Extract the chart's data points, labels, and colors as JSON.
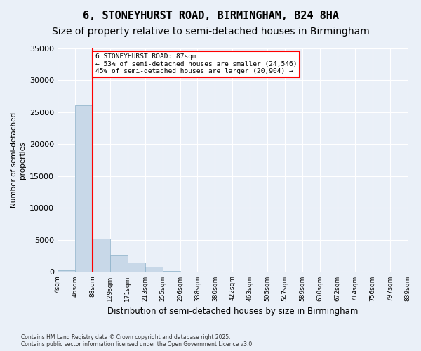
{
  "title1": "6, STONEYHURST ROAD, BIRMINGHAM, B24 8HA",
  "title2": "Size of property relative to semi-detached houses in Birmingham",
  "xlabel": "Distribution of semi-detached houses by size in Birmingham",
  "ylabel": "Number of semi-detached\nproperties",
  "footnote": "Contains HM Land Registry data © Crown copyright and database right 2025.\nContains public sector information licensed under the Open Government Licence v3.0.",
  "bin_labels": [
    "4sqm",
    "46sqm",
    "88sqm",
    "129sqm",
    "171sqm",
    "213sqm",
    "255sqm",
    "296sqm",
    "338sqm",
    "380sqm",
    "422sqm",
    "463sqm",
    "505sqm",
    "547sqm",
    "589sqm",
    "630sqm",
    "672sqm",
    "714sqm",
    "756sqm",
    "797sqm",
    "839sqm"
  ],
  "values": [
    300,
    26100,
    5200,
    2700,
    1500,
    800,
    150,
    50,
    0,
    0,
    0,
    0,
    0,
    0,
    0,
    0,
    0,
    0,
    0,
    0
  ],
  "bar_color": "#c8d8e8",
  "bar_edge_color": "#8ab0c8",
  "vline_pos": 1.5,
  "vline_color": "red",
  "property_label": "6 STONEYHURST ROAD: 87sqm",
  "smaller_pct": "53% of semi-detached houses are smaller (24,546)",
  "larger_pct": "45% of semi-detached houses are larger (20,904)",
  "ylim": [
    0,
    35000
  ],
  "yticks": [
    0,
    5000,
    10000,
    15000,
    20000,
    25000,
    30000,
    35000
  ],
  "bg_color": "#eaf0f8",
  "plot_bg_color": "#eaf0f8",
  "grid_color": "white",
  "title1_fontsize": 11,
  "title2_fontsize": 10
}
